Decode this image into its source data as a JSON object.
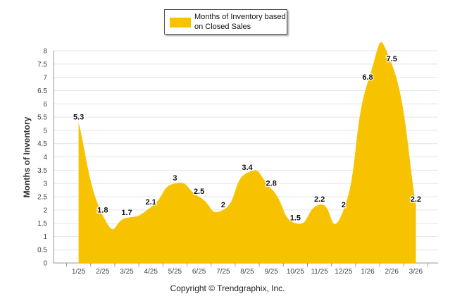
{
  "chart_data": {
    "type": "area",
    "title": "",
    "categories": [
      "1/25",
      "2/25",
      "3/25",
      "4/25",
      "5/25",
      "6/25",
      "7/25",
      "8/25",
      "9/25",
      "10/25",
      "11/25",
      "12/25",
      "1/26",
      "2/26",
      "3/26"
    ],
    "series": [
      {
        "name": "Months of Inventory based on Closed Sales",
        "values": [
          5.3,
          1.8,
          1.7,
          2.1,
          3,
          2.5,
          2,
          3.4,
          2.8,
          1.5,
          2.2,
          2,
          6.8,
          7.5,
          2.2
        ],
        "color": "#F7C200"
      }
    ],
    "data_labels": [
      "5.3",
      "1.8",
      "1.7",
      "2.1",
      "3",
      "2.5",
      "2",
      "3.4",
      "2.8",
      "1.5",
      "2.2",
      "2",
      "6.8",
      "7.5",
      "2.2"
    ],
    "ylabel": "Months of Inventory",
    "xlabel": "",
    "ylim": [
      0,
      8
    ],
    "yticks": [
      "0",
      "0.5",
      "1",
      "1.5",
      "2",
      "2.5",
      "3",
      "3.5",
      "4",
      "4.5",
      "5",
      "5.5",
      "6",
      "6.5",
      "7",
      "7.5",
      "8"
    ],
    "grid": true,
    "legend_position": "top-center"
  },
  "legend": {
    "label_line1": "Months of Inventory based",
    "label_line2": "on Closed Sales"
  },
  "footer": {
    "copyright": "Copyright © Trendgraphix, Inc."
  }
}
